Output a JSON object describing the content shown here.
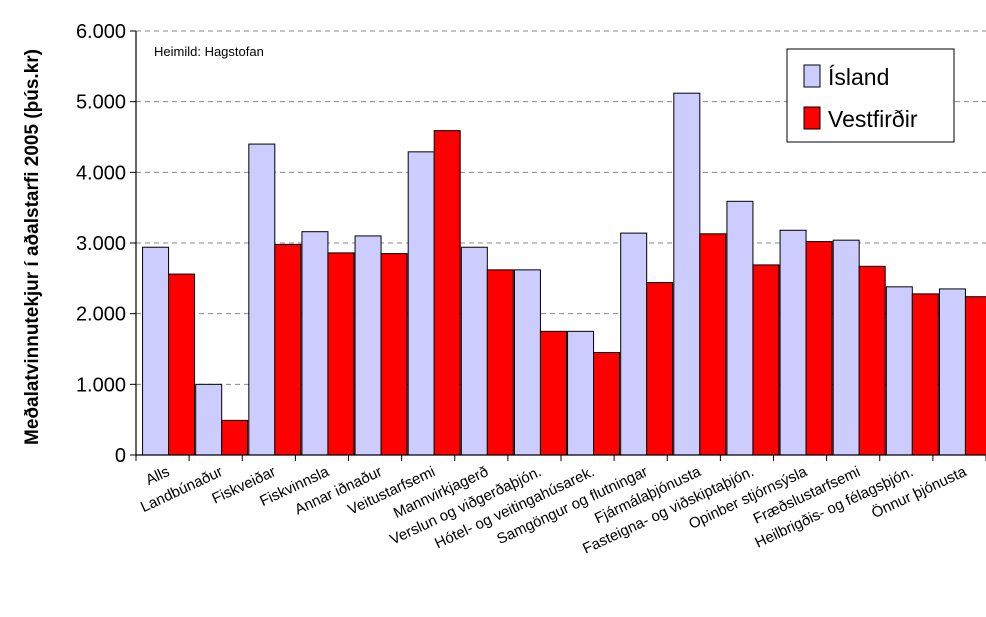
{
  "chart_data": {
    "type": "bar",
    "ylabel": "Meðalatvinnutekjur í aðalstarfi 2005 (þús.kr)",
    "xlabel": "",
    "source_note": "Heimild: Hagstofan",
    "ylim": [
      0,
      6000
    ],
    "yticks": [
      0,
      1000,
      2000,
      3000,
      4000,
      5000,
      6000
    ],
    "ytick_labels": [
      "0",
      "1.000",
      "2.000",
      "3.000",
      "4.000",
      "5.000",
      "6.000"
    ],
    "grid": true,
    "legend_position": "top-right",
    "categories": [
      "Alls",
      "Landbúnaður",
      "Fiskveiðar",
      "Fiskvinnsla",
      "Annar iðnaður",
      "Veitustarfsemi",
      "Mannvirkjagerð",
      "Verslun og viðgerðaþjón.",
      "Hótel- og veitingahúsarek.",
      "Samgöngur og flutningar",
      "Fjármálaþjónusta",
      "Fasteigna- og viðskiptaþjón.",
      "Opinber stjórnsýsla",
      "Fræðslustarfsemi",
      "Heilbrigðis- og félagsþjón.",
      "Önnur þjónusta"
    ],
    "series": [
      {
        "name": "Ísland",
        "color": "#ccccff",
        "values": [
          2940,
          1000,
          4400,
          3160,
          3100,
          4290,
          2940,
          2620,
          1750,
          3140,
          5120,
          3590,
          3180,
          3040,
          2380,
          2350
        ]
      },
      {
        "name": "Vestfirðir",
        "color": "#ff0000",
        "values": [
          2560,
          490,
          2980,
          2860,
          2850,
          4590,
          2620,
          1750,
          1450,
          2440,
          3130,
          2690,
          3020,
          2670,
          2280,
          2240
        ]
      }
    ]
  }
}
